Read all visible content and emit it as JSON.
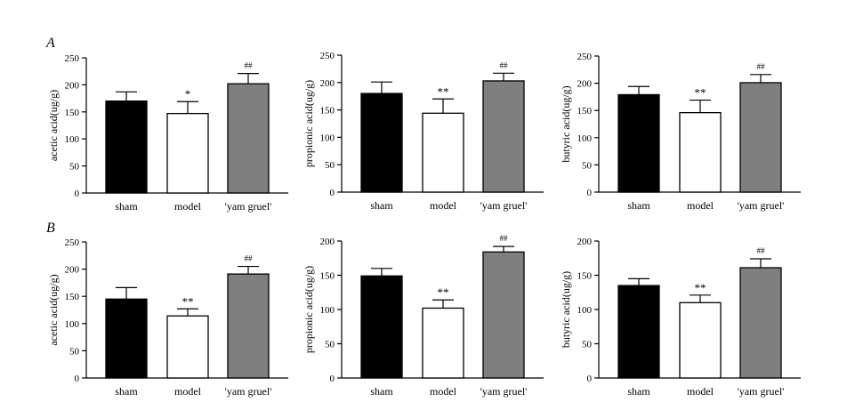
{
  "panel_labels": {
    "A": "A",
    "B": "B"
  },
  "colors": {
    "sham": "#000000",
    "model": "#ffffff",
    "yam": "#7f7f7f",
    "axis": "#000000"
  },
  "chart_data": [
    {
      "panel": "A",
      "type": "bar",
      "categories": [
        "sham",
        "model",
        "'yam gruel'"
      ],
      "values": [
        170,
        147,
        202
      ],
      "errors": [
        17,
        22,
        19
      ],
      "annotations": [
        "",
        "*",
        "##"
      ],
      "ylabel": "acetic acid(ug/g)",
      "ylim": [
        0,
        250
      ],
      "yticks": [
        0,
        50,
        100,
        150,
        200,
        250
      ]
    },
    {
      "panel": "A",
      "type": "bar",
      "categories": [
        "sham",
        "model",
        "'yam gruel'"
      ],
      "values": [
        180,
        144,
        203
      ],
      "errors": [
        21,
        26,
        14
      ],
      "annotations": [
        "",
        "**",
        "##"
      ],
      "ylabel": "propionic acid(ug/g)",
      "ylim": [
        0,
        250
      ],
      "yticks": [
        0,
        50,
        100,
        150,
        200,
        250
      ]
    },
    {
      "panel": "A",
      "type": "bar",
      "categories": [
        "sham",
        "model",
        "'yam gruel'"
      ],
      "values": [
        179,
        146,
        201
      ],
      "errors": [
        15,
        23,
        15
      ],
      "annotations": [
        "",
        "**",
        "##"
      ],
      "ylabel": "butyric acid(ug/g)",
      "ylim": [
        0,
        250
      ],
      "yticks": [
        0,
        50,
        100,
        150,
        200,
        250
      ]
    },
    {
      "panel": "B",
      "type": "bar",
      "categories": [
        "sham",
        "model",
        "'yam gruel'"
      ],
      "values": [
        145,
        114,
        191
      ],
      "errors": [
        21,
        13,
        14
      ],
      "annotations": [
        "",
        "**",
        "##"
      ],
      "ylabel": "acetic acid(ug/g)",
      "ylim": [
        0,
        250
      ],
      "yticks": [
        0,
        50,
        100,
        150,
        200,
        250
      ]
    },
    {
      "panel": "B",
      "type": "bar",
      "categories": [
        "sham",
        "model",
        "'yam gruel'"
      ],
      "values": [
        149,
        102,
        184
      ],
      "errors": [
        11,
        12,
        8
      ],
      "annotations": [
        "",
        "**",
        "##"
      ],
      "ylabel": "propionic acid(ug/g)",
      "ylim": [
        0,
        200
      ],
      "yticks": [
        0,
        50,
        100,
        150,
        200
      ]
    },
    {
      "panel": "B",
      "type": "bar",
      "categories": [
        "sham",
        "model",
        "'yam gruel'"
      ],
      "values": [
        135,
        110,
        161
      ],
      "errors": [
        10,
        11,
        13
      ],
      "annotations": [
        "",
        "**",
        "##"
      ],
      "ylabel": "butyric acid(ug/g)",
      "ylim": [
        0,
        200
      ],
      "yticks": [
        0,
        50,
        100,
        150,
        200
      ]
    }
  ]
}
